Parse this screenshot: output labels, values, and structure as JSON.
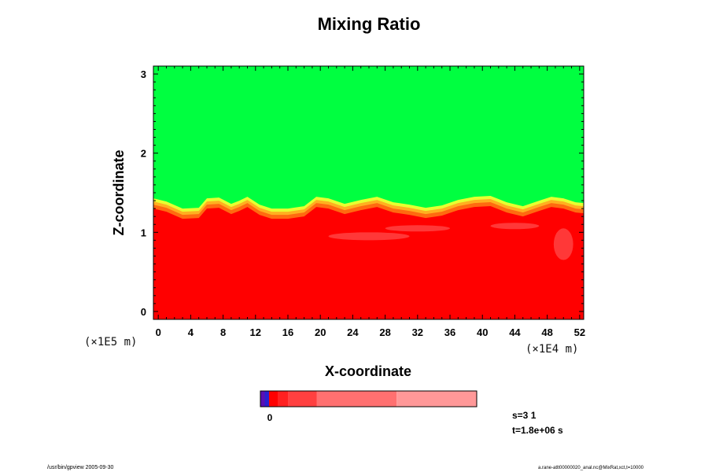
{
  "chart_data": {
    "type": "heatmap",
    "title": "Mixing Ratio",
    "xlabel": "X-coordinate",
    "ylabel": "Z-coordinate",
    "x_unit": "(×1E4 m)",
    "y_unit": "(×1E5 m)",
    "xlim": [
      -0.6,
      52.5
    ],
    "ylim": [
      -0.1,
      3.1
    ],
    "xticks": [
      0,
      4,
      8,
      12,
      16,
      20,
      24,
      28,
      32,
      36,
      40,
      44,
      48,
      52
    ],
    "yticks": [
      0,
      1,
      2,
      3
    ],
    "upper_color": "#00ff40",
    "lower_color": "#ff0000",
    "mixing_layer_top_z": [
      [
        -0.6,
        1.4
      ],
      [
        1,
        1.36
      ],
      [
        3,
        1.27
      ],
      [
        5,
        1.28
      ],
      [
        6,
        1.4
      ],
      [
        7.5,
        1.41
      ],
      [
        9,
        1.33
      ],
      [
        10,
        1.37
      ],
      [
        11,
        1.42
      ],
      [
        12.5,
        1.32
      ],
      [
        14,
        1.27
      ],
      [
        16,
        1.27
      ],
      [
        18,
        1.3
      ],
      [
        19.5,
        1.42
      ],
      [
        21,
        1.4
      ],
      [
        23,
        1.33
      ],
      [
        25,
        1.38
      ],
      [
        27,
        1.42
      ],
      [
        29,
        1.35
      ],
      [
        31,
        1.32
      ],
      [
        33,
        1.28
      ],
      [
        35,
        1.31
      ],
      [
        37,
        1.38
      ],
      [
        39,
        1.42
      ],
      [
        41,
        1.43
      ],
      [
        43,
        1.35
      ],
      [
        45,
        1.3
      ],
      [
        47,
        1.37
      ],
      [
        48.5,
        1.42
      ],
      [
        50,
        1.4
      ],
      [
        51.5,
        1.35
      ],
      [
        52.5,
        1.34
      ]
    ],
    "colorbar": {
      "tick_label": "0",
      "segments": [
        {
          "value": 0.0,
          "color": "#5a0fb4"
        },
        {
          "value": 0.05,
          "color": "#2a20d0"
        },
        {
          "value": 0.1,
          "color": "#ff0000"
        },
        {
          "value": 0.25,
          "color": "#ff2020"
        },
        {
          "value": 0.4,
          "color": "#ff4040"
        },
        {
          "value": 0.7,
          "color": "#ff7070"
        },
        {
          "value": 1.0,
          "color": "#ff9898"
        }
      ],
      "segment_fractions": [
        0.02,
        0.02,
        0.04,
        0.05,
        0.13,
        0.37,
        0.37
      ]
    },
    "annotations": {
      "s": "s=3 1",
      "t": "t=1.8e+06 s"
    }
  },
  "footer": {
    "left": "/usr/bin/gpview 2005-09-30",
    "right": "a.rane-atlt00000020_anal.nc@MixRat,xct,t=10000"
  }
}
